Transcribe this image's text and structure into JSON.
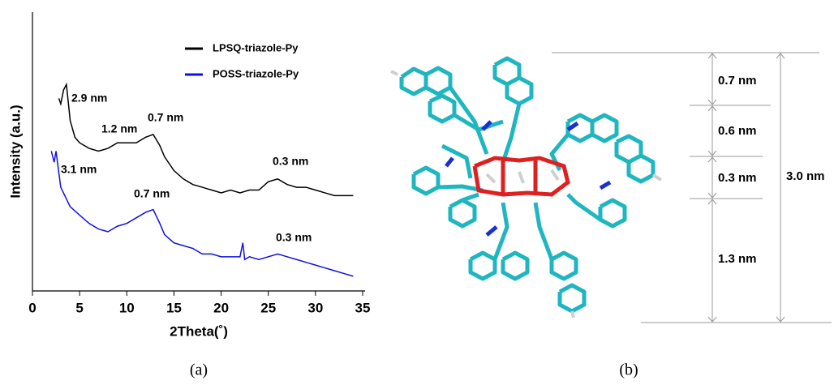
{
  "chart_data": {
    "type": "line",
    "xlabel": "2Theta(˚)",
    "ylabel": "Intensity (a.u.)",
    "xlim": [
      0,
      35
    ],
    "xticks": [
      0,
      5,
      10,
      15,
      20,
      25,
      30,
      35
    ],
    "ylim": [
      0,
      100
    ],
    "legend": "upper center",
    "series": [
      {
        "name": "LPSQ-triazole-Py",
        "color": "#000000",
        "x": [
          2.8,
          3.0,
          3.3,
          3.6,
          4,
          4.5,
          5,
          6,
          7,
          8,
          9,
          10,
          11,
          12,
          12.8,
          13.5,
          14,
          15,
          16,
          17,
          18,
          19,
          20,
          21,
          22,
          23,
          24,
          25,
          26,
          27,
          28,
          29,
          30,
          31,
          32,
          33,
          34
        ],
        "values": [
          69,
          67,
          72,
          74,
          61,
          55,
          53,
          51,
          50,
          51,
          53,
          53,
          53,
          55,
          56,
          52,
          48,
          43,
          40,
          38,
          37,
          36,
          35,
          36,
          35,
          36,
          36,
          39,
          40,
          38,
          37,
          37,
          36,
          35,
          34,
          34,
          34
        ]
      },
      {
        "name": "POSS-triazole-Py",
        "color": "#1010e0",
        "x": [
          2,
          2.3,
          2.5,
          3,
          4,
          5,
          6,
          7,
          8,
          9,
          10,
          11,
          12,
          12.8,
          13.5,
          14,
          15,
          16,
          17,
          18,
          19,
          20,
          21,
          22,
          22.3,
          22.5,
          23,
          24,
          25,
          26,
          27,
          28,
          29,
          30,
          31,
          32,
          33,
          34
        ],
        "values": [
          50,
          46,
          50,
          37,
          30,
          27,
          24,
          22,
          21,
          23,
          24,
          26,
          28,
          29,
          24,
          20,
          17,
          16,
          15,
          13,
          13,
          12,
          12,
          12,
          17,
          11,
          12,
          11,
          12,
          13,
          12,
          11,
          10,
          9,
          8,
          7,
          6,
          5
        ]
      }
    ],
    "annotations": [
      "2.9 nm",
      "1.2 nm",
      "0.7 nm",
      "0.3 nm",
      "3.1 nm",
      "0.7 nm",
      "0.3 nm"
    ],
    "panel_label": "(a)"
  },
  "diagram": {
    "dimensions": [
      "0.7 nm",
      "0.6 nm",
      "0.3 nm",
      "1.3 nm"
    ],
    "total": "3.0 nm",
    "panel_label": "(b)"
  }
}
